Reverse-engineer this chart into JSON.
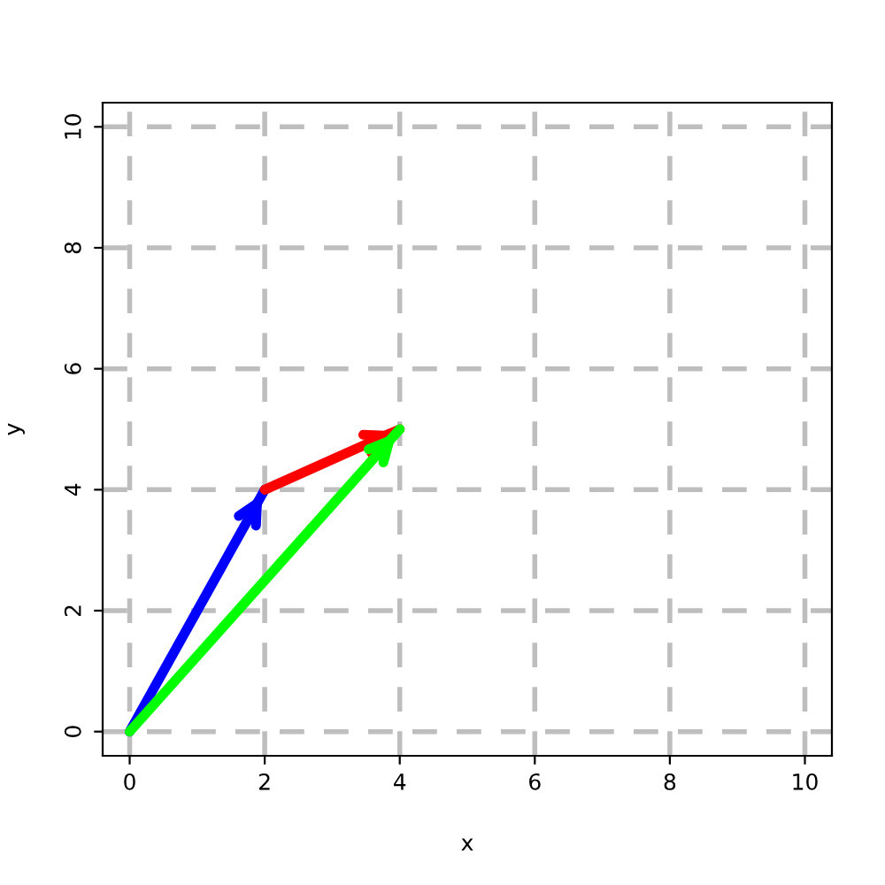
{
  "chart_data": {
    "type": "line",
    "xlabel": "x",
    "ylabel": "y",
    "series": [
      {
        "color": "#0000ff",
        "x": [
          0,
          2
        ],
        "values": [
          0,
          4
        ]
      },
      {
        "color": "#ff0000",
        "x": [
          2,
          4
        ],
        "values": [
          4,
          5
        ]
      },
      {
        "color": "#00ff00",
        "x": [
          0,
          4
        ],
        "values": [
          0,
          5
        ]
      }
    ],
    "xlim": [
      -0.4,
      10.4
    ],
    "ylim": [
      -0.4,
      10.4
    ],
    "xticks": [
      0,
      2,
      4,
      6,
      8,
      10
    ],
    "yticks": [
      0,
      2,
      4,
      6,
      8,
      10
    ],
    "grid": true,
    "line_style": "solid",
    "marker": "none",
    "legend": false
  }
}
